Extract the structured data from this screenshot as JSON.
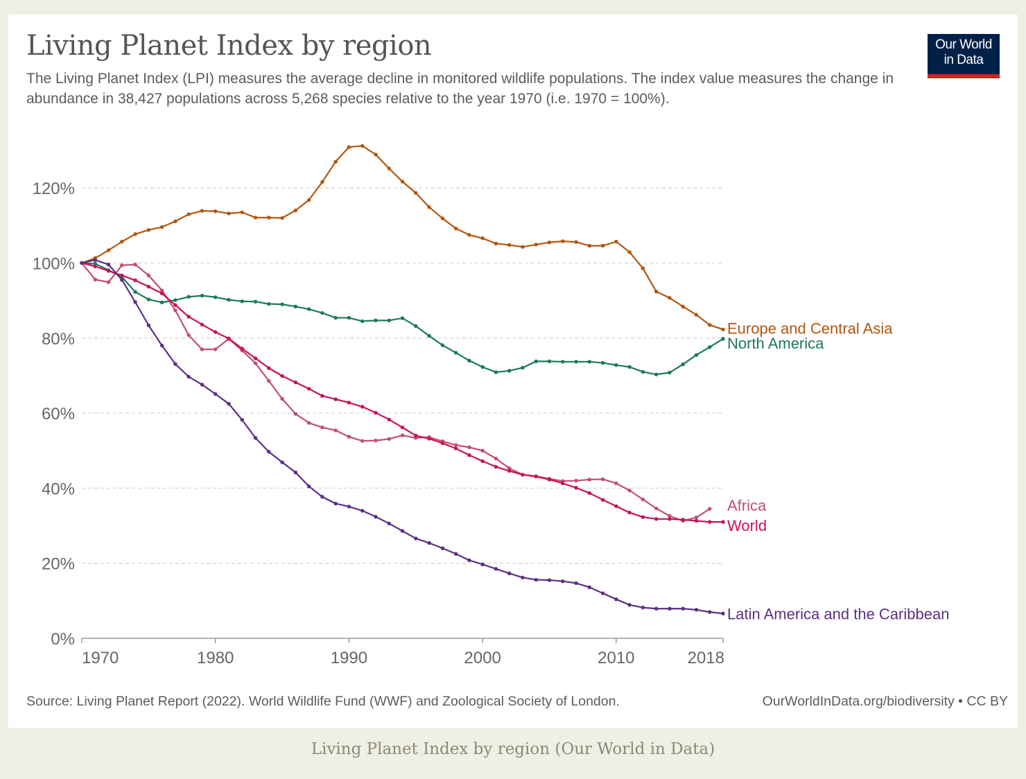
{
  "title": "Living Planet Index by region",
  "subtitle": "The Living Planet Index (LPI) measures the average decline in monitored wildlife populations. The index value measures the change in abundance in 38,427 populations across 5,268 species relative to the year 1970 (i.e. 1970 = 100%).",
  "logo": {
    "line1": "Our World",
    "line2": "in Data"
  },
  "source": "Source: Living Planet Report (2022). World Wildlife Fund (WWF) and Zoological Society of London.",
  "license": "OurWorldInData.org/biodiversity • CC BY",
  "caption": "Living Planet Index by region (Our World in Data)",
  "chart_data": {
    "type": "line",
    "x_start": 1970,
    "x_end": 2018,
    "xlim": [
      1970,
      2018
    ],
    "ylim": [
      0,
      130
    ],
    "x_ticks": [
      1970,
      1980,
      1990,
      2000,
      2010,
      2018
    ],
    "y_ticks": [
      0,
      20,
      40,
      60,
      80,
      100,
      120
    ],
    "y_tick_labels": [
      "0%",
      "20%",
      "40%",
      "60%",
      "80%",
      "100%",
      "120%"
    ],
    "grid": "horizontal dashed",
    "legend": "inline labels at line ends (right)",
    "series": [
      {
        "name": "Europe and Central Asia",
        "color": "#b3560f",
        "values": [
          100,
          101.3,
          103.4,
          105.7,
          107.7,
          108.8,
          109.6,
          111.1,
          113.0,
          113.9,
          113.8,
          113.2,
          113.5,
          112.1,
          112.1,
          112.0,
          114.0,
          116.8,
          121.6,
          127.0,
          130.9,
          131.2,
          128.9,
          125.2,
          121.7,
          118.7,
          114.9,
          111.9,
          109.2,
          107.5,
          106.6,
          105.2,
          104.8,
          104.3,
          104.9,
          105.5,
          105.8,
          105.6,
          104.6,
          104.6,
          105.7,
          102.9,
          98.6,
          92.4,
          90.7,
          88.4,
          86.2,
          83.5,
          82.3
        ]
      },
      {
        "name": "North America",
        "color": "#1a7a5a",
        "values": [
          100,
          99.8,
          98.1,
          96.3,
          92.3,
          90.3,
          89.5,
          90.1,
          91.0,
          91.3,
          90.9,
          90.2,
          89.8,
          89.7,
          89.1,
          89.0,
          88.4,
          87.7,
          86.7,
          85.4,
          85.4,
          84.5,
          84.7,
          84.7,
          85.3,
          83.2,
          80.6,
          78.1,
          76.1,
          74.0,
          72.3,
          70.9,
          71.3,
          72.1,
          73.8,
          73.8,
          73.7,
          73.7,
          73.7,
          73.4,
          72.8,
          72.3,
          71.0,
          70.3,
          70.8,
          73.0,
          75.5,
          77.6,
          79.8
        ]
      },
      {
        "name": "Africa",
        "color": "#c24e6e",
        "values": [
          100,
          95.6,
          94.9,
          99.4,
          99.6,
          96.7,
          92.7,
          87.4,
          80.8,
          77.0,
          77.0,
          79.8,
          76.7,
          73.3,
          68.6,
          63.8,
          59.8,
          57.4,
          56.2,
          55.4,
          53.7,
          52.6,
          52.7,
          53.1,
          54.1,
          53.4,
          53.6,
          52.5,
          51.5,
          50.9,
          50.0,
          47.9,
          45.3,
          43.6,
          43.2,
          42.5,
          41.9,
          42.0,
          42.3,
          42.4,
          41.3,
          39.4,
          37.0,
          34.6,
          32.6,
          31.3,
          32.2,
          34.5,
          null
        ]
      },
      {
        "name": "World",
        "color": "#c8105a",
        "values": [
          100,
          99.1,
          97.9,
          96.7,
          95.4,
          93.7,
          91.9,
          88.8,
          85.7,
          83.6,
          81.6,
          79.9,
          77.2,
          74.6,
          72.0,
          69.9,
          68.2,
          66.5,
          64.6,
          63.7,
          62.8,
          61.7,
          60.1,
          58.3,
          56.2,
          54.0,
          53.2,
          52.0,
          50.6,
          48.8,
          47.2,
          45.7,
          44.6,
          43.6,
          43.1,
          42.3,
          41.3,
          40.1,
          38.7,
          36.9,
          35.2,
          33.5,
          32.3,
          31.8,
          31.8,
          31.6,
          31.3,
          31.0,
          31.0
        ]
      },
      {
        "name": "Latin America and the Caribbean",
        "color": "#5b2f85",
        "values": [
          100,
          100.8,
          99.6,
          95.5,
          89.6,
          83.4,
          78.0,
          73.1,
          69.7,
          67.6,
          65.1,
          62.5,
          58.2,
          53.4,
          49.7,
          46.9,
          44.2,
          40.5,
          37.7,
          35.9,
          35.1,
          34.0,
          32.4,
          30.6,
          28.6,
          26.6,
          25.4,
          24.0,
          22.5,
          20.8,
          19.7,
          18.5,
          17.3,
          16.2,
          15.6,
          15.5,
          15.2,
          14.7,
          13.6,
          12.0,
          10.4,
          8.9,
          8.2,
          7.9,
          7.9,
          7.9,
          7.6,
          7.0,
          6.6
        ]
      }
    ]
  }
}
